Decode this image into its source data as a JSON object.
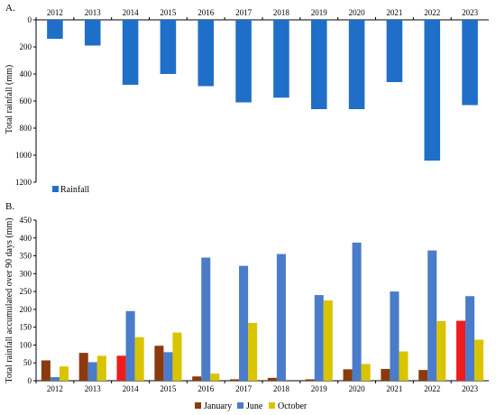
{
  "chart_data": [
    {
      "panel": "A.",
      "type": "bar",
      "categories": [
        "2012",
        "2013",
        "2014",
        "2015",
        "2016",
        "2017",
        "2018",
        "2019",
        "2020",
        "2021",
        "2022",
        "2023"
      ],
      "series": [
        {
          "name": "Rainfall",
          "color": "#1f6fc9",
          "values": [
            140,
            190,
            480,
            400,
            490,
            610,
            575,
            660,
            660,
            460,
            1040,
            630
          ]
        }
      ],
      "ylabel": "Total rainfall (mm)",
      "ylim": [
        0,
        1200
      ],
      "yticks": [
        0,
        200,
        400,
        600,
        800,
        1000,
        1200
      ],
      "y_inverted": true,
      "x_axis_position": "top",
      "legend_placement": "bottom-left"
    },
    {
      "panel": "B.",
      "type": "bar",
      "categories": [
        "2012",
        "2013",
        "2014",
        "2015",
        "2016",
        "2017",
        "2018",
        "2019",
        "2020",
        "2021",
        "2022",
        "2023"
      ],
      "series": [
        {
          "name": "January",
          "color": "#8b3a0e",
          "values": [
            57,
            78,
            70,
            98,
            12,
            4,
            8,
            4,
            32,
            33,
            30,
            168
          ]
        },
        {
          "name": "June",
          "color": "#4a7cc9",
          "values": [
            10,
            52,
            195,
            80,
            345,
            322,
            355,
            240,
            387,
            250,
            365,
            237
          ]
        },
        {
          "name": "October",
          "color": "#d9c400",
          "values": [
            40,
            70,
            122,
            135,
            20,
            162,
            0,
            225,
            47,
            82,
            167,
            115
          ]
        }
      ],
      "highlight_colors": {
        "2014": "#ee1c1c",
        "2023": "#ee1c1c"
      },
      "ylabel": "Total rainfall accumulated over 90 days (mm)",
      "ylim": [
        0,
        450
      ],
      "yticks": [
        0,
        50,
        100,
        150,
        200,
        250,
        300,
        350,
        400,
        450
      ],
      "legend_placement": "bottom-center"
    }
  ]
}
